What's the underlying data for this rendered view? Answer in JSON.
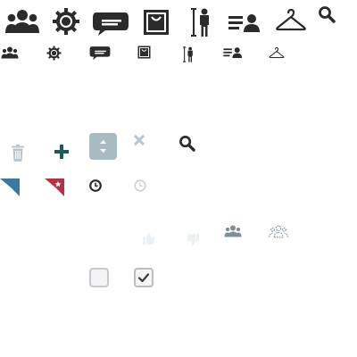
{
  "colors": {
    "dark": "#2b2b2b",
    "teal": "#1f5a5a",
    "muted": "#b9c6cc",
    "light": "#d6dbdf",
    "icon_gray": "#7d8f98",
    "spinner_bg": "#a8bbc2",
    "ribbon_blue": "#3a77a3",
    "ribbon_red": "#b83043",
    "checkbox_border": "#c9c9c9"
  },
  "row_large": [
    {
      "name": "group-icon"
    },
    {
      "name": "gear-icon"
    },
    {
      "name": "speech-bubble-icon"
    },
    {
      "name": "shopping-bag-icon"
    },
    {
      "name": "person-height-icon"
    },
    {
      "name": "user-list-icon"
    },
    {
      "name": "hanger-icon"
    },
    {
      "name": "search-icon"
    }
  ],
  "row_small": [
    {
      "name": "group-icon"
    },
    {
      "name": "gear-icon"
    },
    {
      "name": "speech-bubble-icon"
    },
    {
      "name": "shopping-bag-icon"
    },
    {
      "name": "person-height-icon"
    },
    {
      "name": "user-list-icon"
    },
    {
      "name": "hanger-icon"
    }
  ],
  "controls": [
    {
      "name": "trash-icon"
    },
    {
      "name": "plus-icon"
    },
    {
      "name": "spinner-updown-icon"
    },
    {
      "name": "close-icon"
    },
    {
      "name": "search-icon"
    }
  ],
  "ribbons": [
    {
      "name": "ribbon-blue-icon"
    },
    {
      "name": "ribbon-red-star-icon"
    },
    {
      "name": "clock-icon"
    },
    {
      "name": "clock-faded-icon"
    }
  ],
  "feedback": [
    {
      "name": "thumbs-up-icon"
    },
    {
      "name": "thumbs-down-icon"
    },
    {
      "name": "group-icon"
    },
    {
      "name": "group-dashed-icon"
    }
  ],
  "checkboxes": [
    {
      "name": "checkbox-unchecked",
      "checked": false
    },
    {
      "name": "checkbox-checked",
      "checked": true
    }
  ]
}
